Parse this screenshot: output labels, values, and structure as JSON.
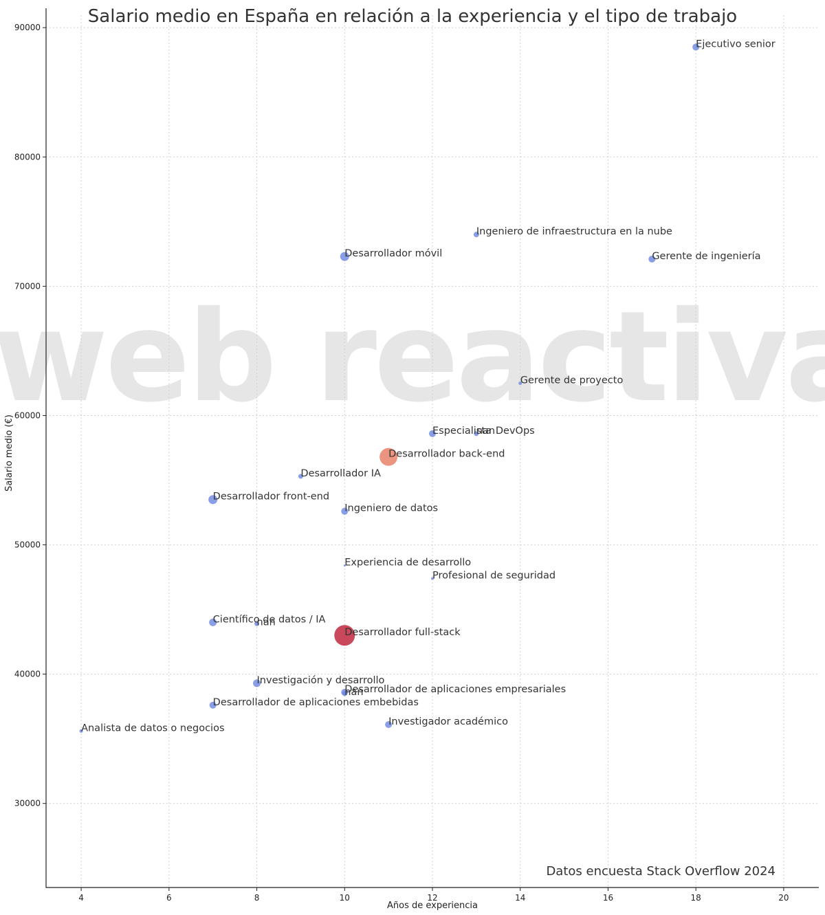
{
  "chart_data": {
    "type": "scatter",
    "title": "Salario medio en España en relación a la experiencia y el tipo de trabajo",
    "xlabel": "Años de experiencia",
    "ylabel": "Salario medio (€)",
    "xlim": [
      3.2,
      20.8
    ],
    "ylim": [
      23500,
      91500
    ],
    "xticks": [
      4,
      6,
      8,
      10,
      12,
      14,
      16,
      18,
      20
    ],
    "yticks": [
      30000,
      40000,
      50000,
      60000,
      70000,
      80000,
      90000
    ],
    "grid": true,
    "colors": {
      "small": "#6b86e0",
      "medium": "#e8826a",
      "large": "#c0283f"
    },
    "points": [
      {
        "label": "Ejecutivo senior",
        "x": 18,
        "y": 88500,
        "size": "small"
      },
      {
        "label": "Ingeniero de infraestructura en la nube",
        "x": 13,
        "y": 74000,
        "size": "small"
      },
      {
        "label": "Desarrollador móvil",
        "x": 10,
        "y": 72300,
        "size": "small"
      },
      {
        "label": "Gerente de ingeniería",
        "x": 17,
        "y": 72100,
        "size": "small"
      },
      {
        "label": "Gerente de proyecto",
        "x": 14,
        "y": 62500,
        "size": "small"
      },
      {
        "label": "Especialista",
        "x": 12,
        "y": 58600,
        "size": "small"
      },
      {
        "label": "nan",
        "x": 13,
        "y": 58600,
        "size": "small"
      },
      {
        "label": "DevOps",
        "x": 13,
        "y": 58600,
        "size": "small"
      },
      {
        "label": "Desarrollador back-end",
        "x": 11,
        "y": 56800,
        "size": "medium"
      },
      {
        "label": "Desarrollador IA",
        "x": 9,
        "y": 55300,
        "size": "small"
      },
      {
        "label": "Desarrollador front-end",
        "x": 7,
        "y": 53500,
        "size": "small"
      },
      {
        "label": "Ingeniero de datos",
        "x": 10,
        "y": 52600,
        "size": "small"
      },
      {
        "label": "Experiencia de desarrollo",
        "x": 10,
        "y": 48400,
        "size": "small"
      },
      {
        "label": "Profesional de seguridad",
        "x": 12,
        "y": 47400,
        "size": "small"
      },
      {
        "label": "Científico de datos / IA",
        "x": 7,
        "y": 44000,
        "size": "small"
      },
      {
        "label": "nan",
        "x": 8,
        "y": 43900,
        "size": "small"
      },
      {
        "label": "Desarrollador full-stack",
        "x": 10,
        "y": 43000,
        "size": "large"
      },
      {
        "label": "Investigación y desarrollo",
        "x": 8,
        "y": 39300,
        "size": "small"
      },
      {
        "label": "Desarrollador de aplicaciones empresariales",
        "x": 10,
        "y": 38600,
        "size": "small"
      },
      {
        "label": "nan",
        "x": 10,
        "y": 38500,
        "size": "small"
      },
      {
        "label": "Desarrollador de aplicaciones embebidas",
        "x": 7,
        "y": 37600,
        "size": "small"
      },
      {
        "label": "Investigador académico",
        "x": 11,
        "y": 36100,
        "size": "small"
      },
      {
        "label": "Analista de datos o negocios",
        "x": 4,
        "y": 35600,
        "size": "small"
      }
    ],
    "annotations": [
      "Datos encuesta Stack Overflow 2024"
    ]
  },
  "watermark": {
    "text": "web reactiva"
  }
}
